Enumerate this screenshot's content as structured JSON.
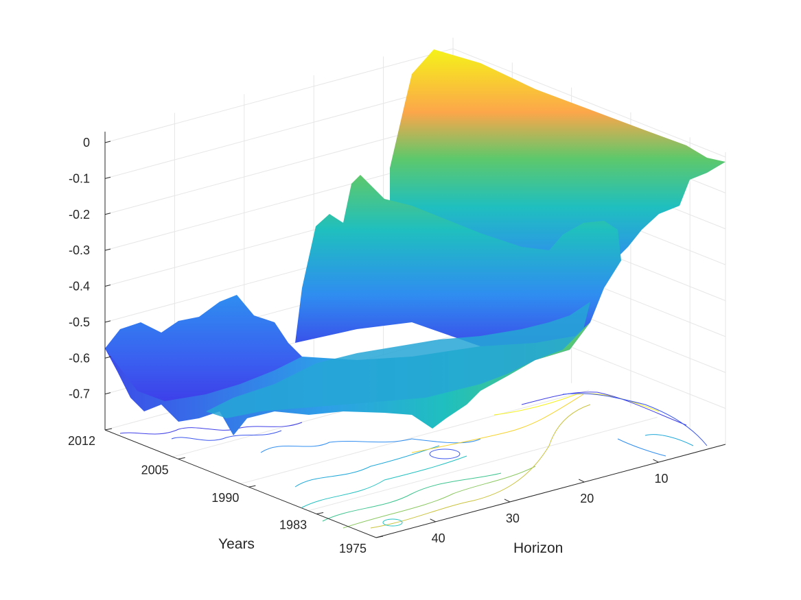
{
  "chart_data": {
    "type": "surface",
    "title": "",
    "xlabel": "Horizon",
    "ylabel": "Years",
    "zlabel": "",
    "x_ticks": [
      10,
      20,
      30,
      40
    ],
    "y_ticks": [
      "2012",
      "2005",
      "1990",
      "1983",
      "1975"
    ],
    "z_ticks": [
      "0",
      "-0.1",
      "-0.2",
      "-0.3",
      "-0.4",
      "-0.5",
      "-0.6",
      "-0.7"
    ],
    "xlim": [
      1,
      48
    ],
    "ylim": [
      "1975",
      "2012"
    ],
    "zlim": [
      -0.8,
      0
    ],
    "colormap": "parula",
    "grid": true,
    "contour_on_floor": true,
    "surface_summary": {
      "near_horizon_values": -0.05,
      "far_horizon_recent_values": -0.6,
      "far_horizon_early_values": -0.75,
      "ridge_horizon_approx": 29
    }
  },
  "colors": {
    "low": "#3d3de8",
    "mid_low": "#2f8df0",
    "mid": "#1fbfbf",
    "mid_high": "#5ec86b",
    "high_orange": "#fca64a",
    "top": "#f5f219",
    "axis": "#262626",
    "grid": "#e6e6e6"
  }
}
